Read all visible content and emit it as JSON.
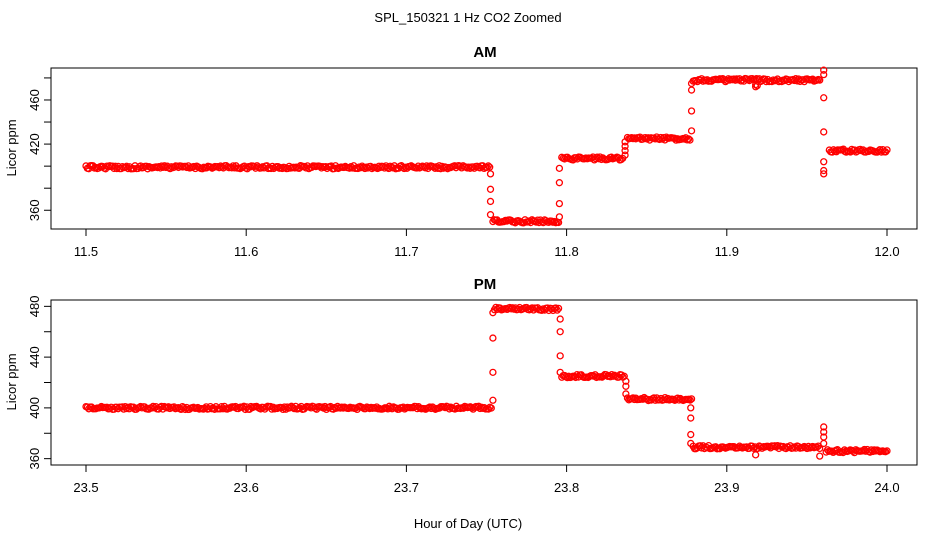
{
  "figure_title": "SPL_150321  1 Hz CO2 Zoomed",
  "x_axis_label": "Hour of Day (UTC)",
  "point_color": "#ff0000",
  "chart_data": [
    {
      "type": "scatter",
      "title": "AM",
      "xlabel": "",
      "ylabel": "Licor ppm",
      "xlim": [
        11.5,
        12.0
      ],
      "ylim": [
        343,
        489
      ],
      "x_ticks": [
        11.5,
        11.6,
        11.7,
        11.8,
        11.9,
        12.0
      ],
      "x_tick_labels": [
        "11.5",
        "11.6",
        "11.7",
        "11.8",
        "11.9",
        "12.0"
      ],
      "y_ticks": [
        360,
        420,
        460
      ],
      "y_tick_labels": [
        "360",
        "420",
        "460"
      ],
      "y_minor_ticks": [
        380,
        400,
        440,
        480
      ],
      "grid": false,
      "segments": [
        {
          "x_start": 11.5,
          "x_end": 11.752,
          "y": 399
        },
        {
          "x_start": 11.754,
          "x_end": 11.795,
          "y": 350
        },
        {
          "x_start": 11.797,
          "x_end": 11.835,
          "y": 407
        },
        {
          "x_start": 11.838,
          "x_end": 11.877,
          "y": 425
        },
        {
          "x_start": 11.879,
          "x_end": 11.958,
          "y": 478
        },
        {
          "x_start": 11.964,
          "x_end": 12.0,
          "y": 414
        }
      ],
      "transitions": [
        {
          "x": 11.7525,
          "y": [
            393,
            379,
            368,
            356
          ]
        },
        {
          "x": 11.7955,
          "y": [
            354,
            366,
            385,
            398
          ]
        },
        {
          "x": 11.8365,
          "y": [
            410,
            414,
            418,
            422
          ]
        },
        {
          "x": 11.878,
          "y": [
            432,
            450,
            469,
            475
          ]
        },
        {
          "x": 11.9605,
          "y": [
            487,
            483,
            462,
            431,
            404,
            396,
            393
          ]
        }
      ],
      "outliers": [
        {
          "x": 11.918,
          "y": 472
        },
        {
          "x": 11.918,
          "y": 474
        },
        {
          "x": 11.919,
          "y": 473
        }
      ]
    },
    {
      "type": "scatter",
      "title": "PM",
      "xlabel": "",
      "ylabel": "Licor ppm",
      "xlim": [
        23.5,
        24.0
      ],
      "ylim": [
        355,
        485
      ],
      "x_ticks": [
        23.5,
        23.6,
        23.7,
        23.8,
        23.9,
        24.0
      ],
      "x_tick_labels": [
        "23.5",
        "23.6",
        "23.7",
        "23.8",
        "23.9",
        "24.0"
      ],
      "y_ticks": [
        360,
        400,
        440,
        480
      ],
      "y_tick_labels": [
        "360",
        "400",
        "440",
        "480"
      ],
      "y_minor_ticks": [
        380,
        420,
        460
      ],
      "grid": false,
      "segments": [
        {
          "x_start": 23.5,
          "x_end": 23.753,
          "y": 400
        },
        {
          "x_start": 23.755,
          "x_end": 23.795,
          "y": 478
        },
        {
          "x_start": 23.797,
          "x_end": 23.836,
          "y": 425
        },
        {
          "x_start": 23.838,
          "x_end": 23.878,
          "y": 407
        },
        {
          "x_start": 23.879,
          "x_end": 23.958,
          "y": 369
        },
        {
          "x_start": 23.962,
          "x_end": 24.0,
          "y": 366
        }
      ],
      "transitions": [
        {
          "x": 23.754,
          "y": [
            406,
            428,
            455,
            475
          ]
        },
        {
          "x": 23.796,
          "y": [
            470,
            460,
            441,
            428
          ]
        },
        {
          "x": 23.837,
          "y": [
            421,
            417,
            411
          ]
        },
        {
          "x": 23.8775,
          "y": [
            400,
            392,
            379,
            372
          ]
        },
        {
          "x": 23.9605,
          "y": [
            385,
            381,
            377,
            372
          ]
        }
      ],
      "outliers": [
        {
          "x": 23.918,
          "y": 363
        },
        {
          "x": 23.958,
          "y": 362
        }
      ]
    }
  ]
}
